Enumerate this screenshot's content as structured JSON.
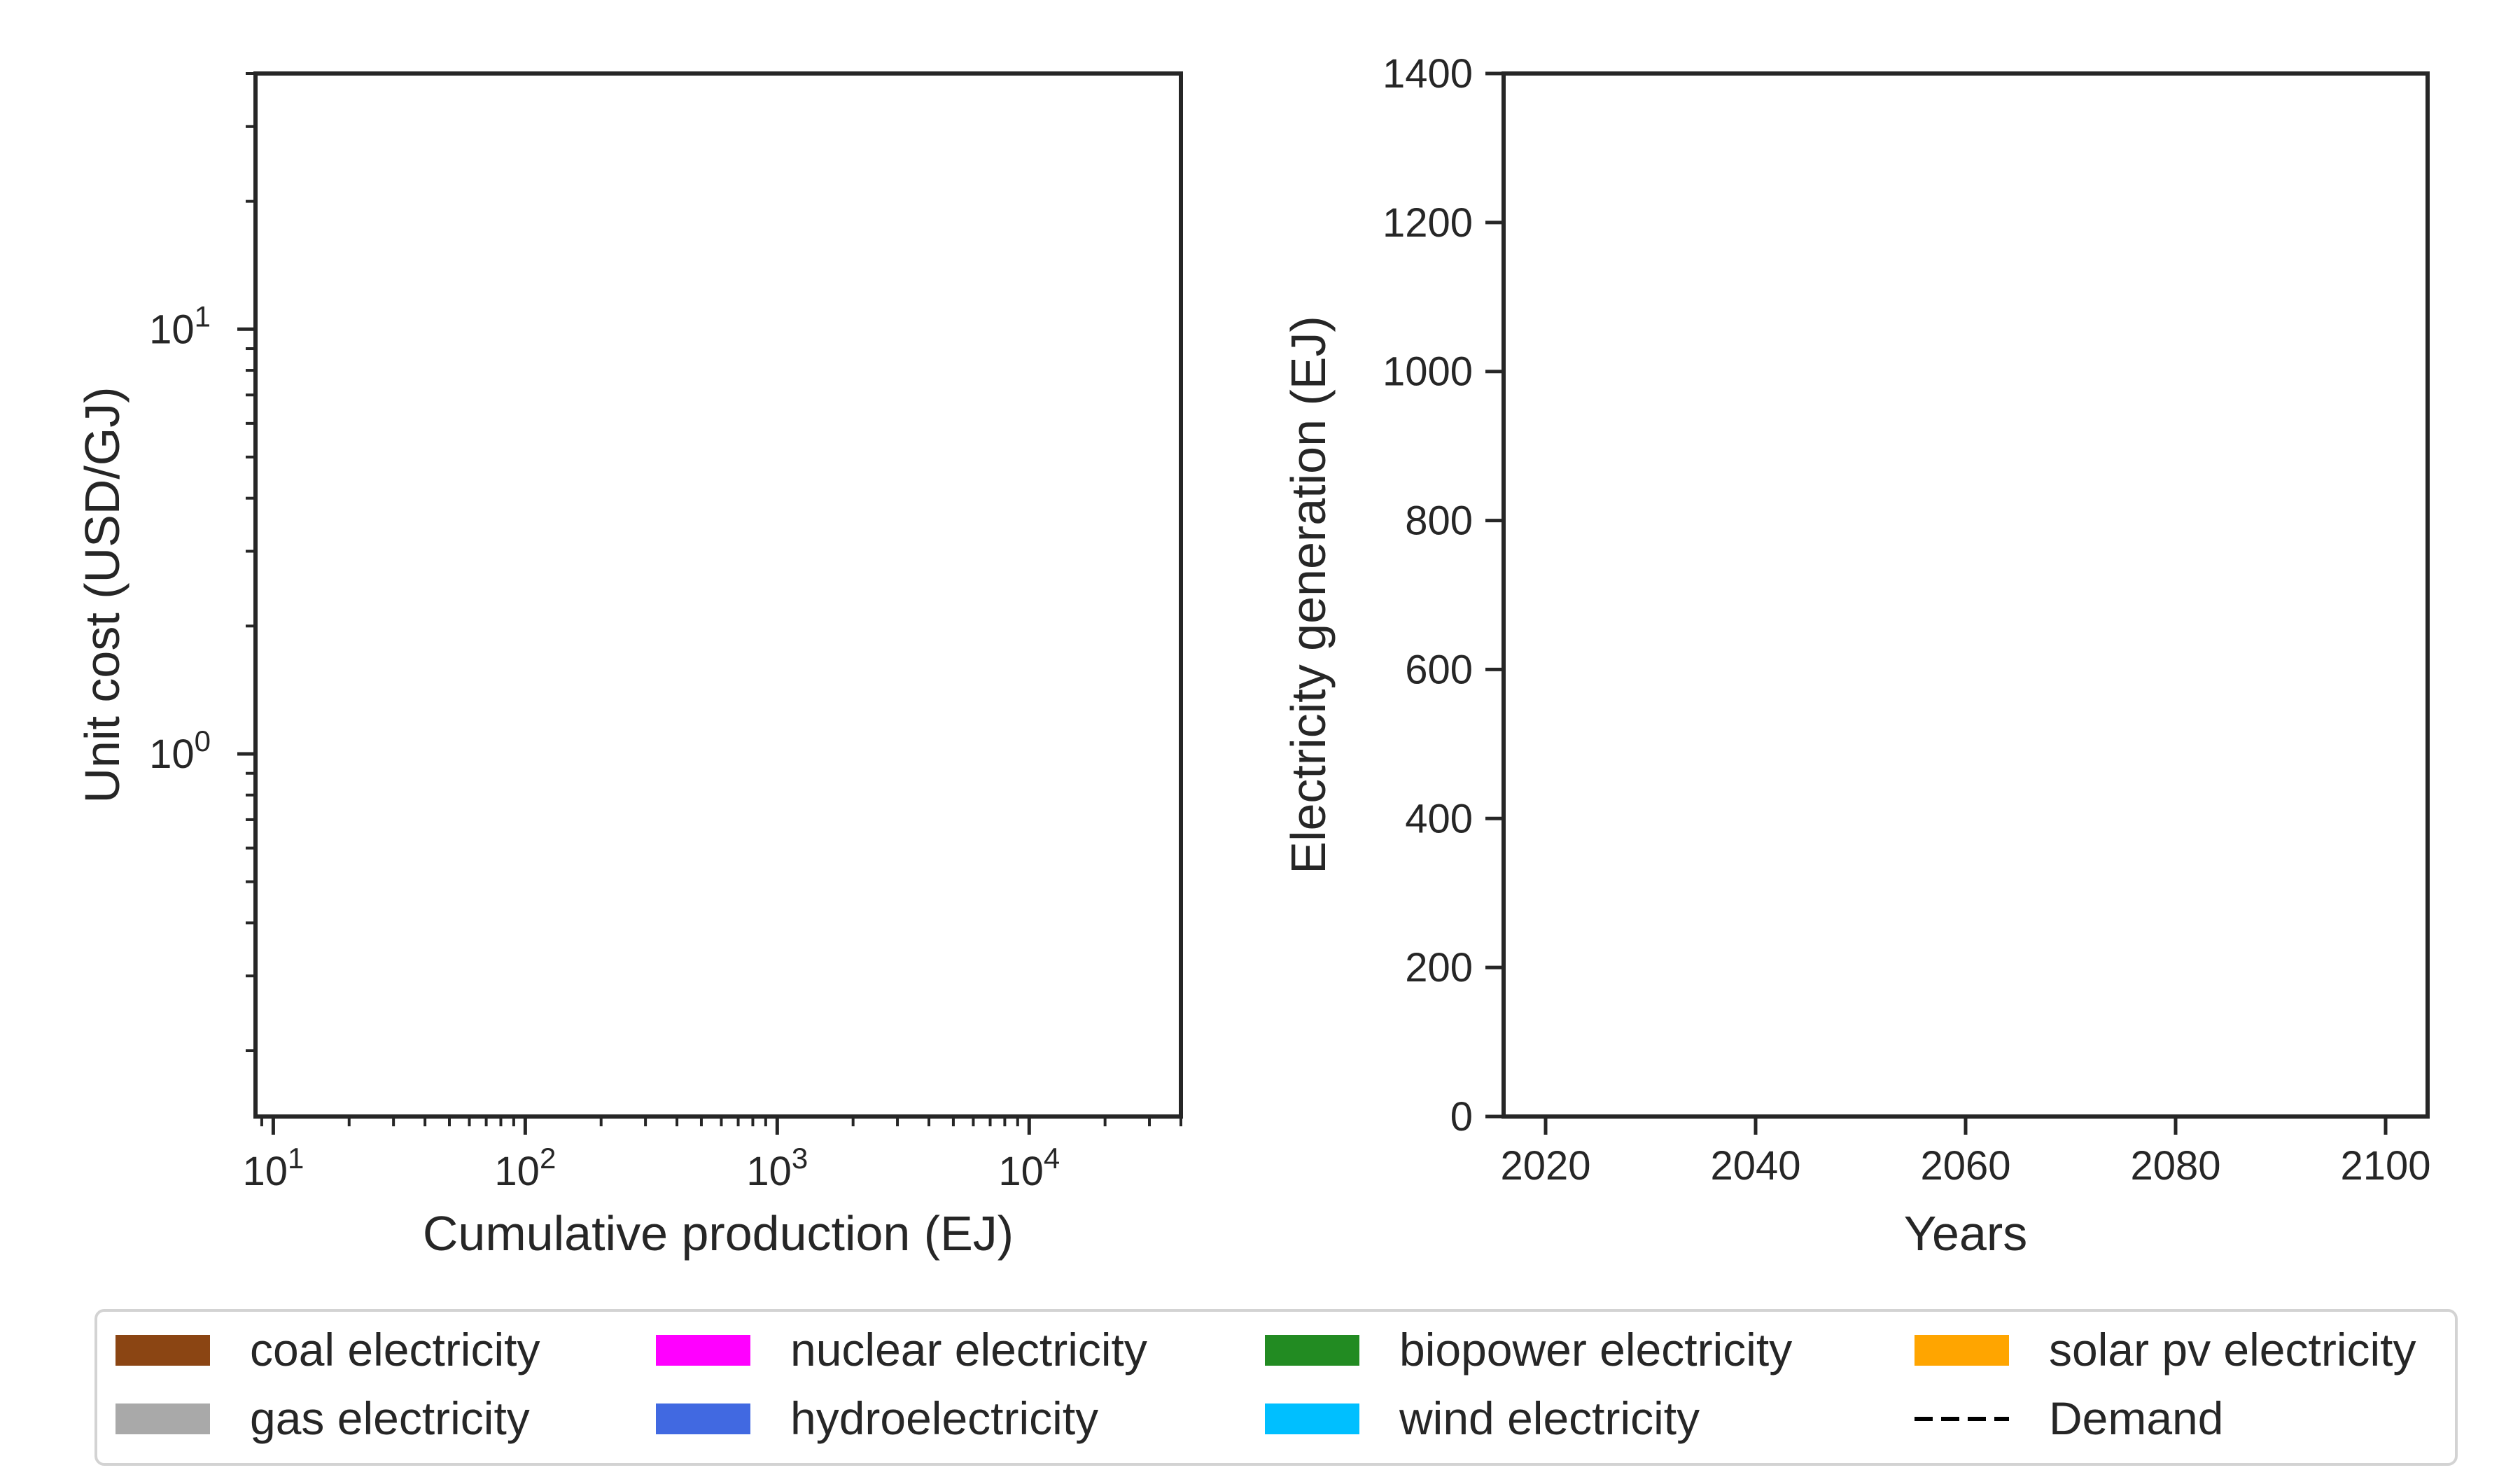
{
  "chart_data": [
    {
      "type": "line",
      "xlabel": "Cumulative production (EJ)",
      "ylabel": "Unit cost (USD/GJ)",
      "xscale": "log",
      "yscale": "log",
      "xlim": [
        8.5,
        40000
      ],
      "ylim": [
        0.14,
        40
      ],
      "x_ticks": [
        {
          "value": 10,
          "base": "10",
          "exp": "1"
        },
        {
          "value": 100,
          "base": "10",
          "exp": "2"
        },
        {
          "value": 1000,
          "base": "10",
          "exp": "3"
        },
        {
          "value": 10000,
          "base": "10",
          "exp": "4"
        }
      ],
      "y_ticks": [
        {
          "value": 1,
          "base": "10",
          "exp": "0"
        },
        {
          "value": 10,
          "base": "10",
          "exp": "1"
        }
      ],
      "grid": false,
      "series": []
    },
    {
      "type": "area",
      "xlabel": "Years",
      "ylabel": "Electricity generation (EJ)",
      "xlim": [
        2016,
        2104
      ],
      "ylim": [
        0,
        1400
      ],
      "x_ticks": [
        "2020",
        "2040",
        "2060",
        "2080",
        "2100"
      ],
      "y_ticks": [
        "0",
        "200",
        "400",
        "600",
        "800",
        "1000",
        "1200",
        "1400"
      ],
      "grid": false,
      "series": []
    }
  ],
  "legend": {
    "placement": "bottom",
    "columns": 4,
    "items": [
      {
        "label": "coal electricity",
        "color": "#8B4513",
        "kind": "patch"
      },
      {
        "label": "gas electricity",
        "color": "#A9A9A9",
        "kind": "patch"
      },
      {
        "label": "nuclear electricity",
        "color": "#FF00FF",
        "kind": "patch"
      },
      {
        "label": "hydroelectricity",
        "color": "#4169E1",
        "kind": "patch"
      },
      {
        "label": "biopower electricity",
        "color": "#228B22",
        "kind": "patch"
      },
      {
        "label": "wind electricity",
        "color": "#00BFFF",
        "kind": "patch"
      },
      {
        "label": "solar pv electricity",
        "color": "#FFA500",
        "kind": "patch"
      },
      {
        "label": "Demand",
        "color": "#000000",
        "kind": "dashed-line"
      }
    ]
  }
}
